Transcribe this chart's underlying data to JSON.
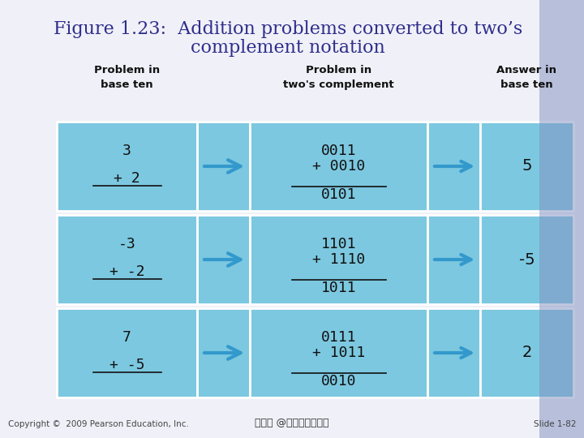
{
  "title_line1": "Figure 1.23:  Addition problems converted to two’s",
  "title_line2": "complement notation",
  "title_color": "#2E2E8B",
  "title_fontsize": 16,
  "bg_color": "#F0F0F8",
  "cell_color": "#7CC8E0",
  "table_text_color": "#111111",
  "header_text_color": "#111111",
  "col_headers": [
    "Problem in\nbase ten",
    "Problem in\ntwo's complement",
    "Answer in\nbase ten"
  ],
  "rows": [
    {
      "base10_top": "3",
      "base10_bot": "+ 2",
      "twos_top": "0011",
      "twos_mid": "+ 0010",
      "twos_bot": "0101",
      "answer": "5"
    },
    {
      "base10_top": "-3",
      "base10_bot": "+ -2",
      "twos_top": "1101",
      "twos_mid": "+ 1110",
      "twos_bot": "1011",
      "answer": "-5"
    },
    {
      "base10_top": "7",
      "base10_bot": "+ -5",
      "twos_top": "0111",
      "twos_mid": "+ 1011",
      "twos_bot": "0010",
      "answer": "2"
    }
  ],
  "footer_left": "Copyright ©  2009 Pearson Education, Inc.",
  "footer_center": "蔡文能 @交通大學資工系",
  "footer_right": "Slide 1-82",
  "arrow_color": "#3399CC"
}
